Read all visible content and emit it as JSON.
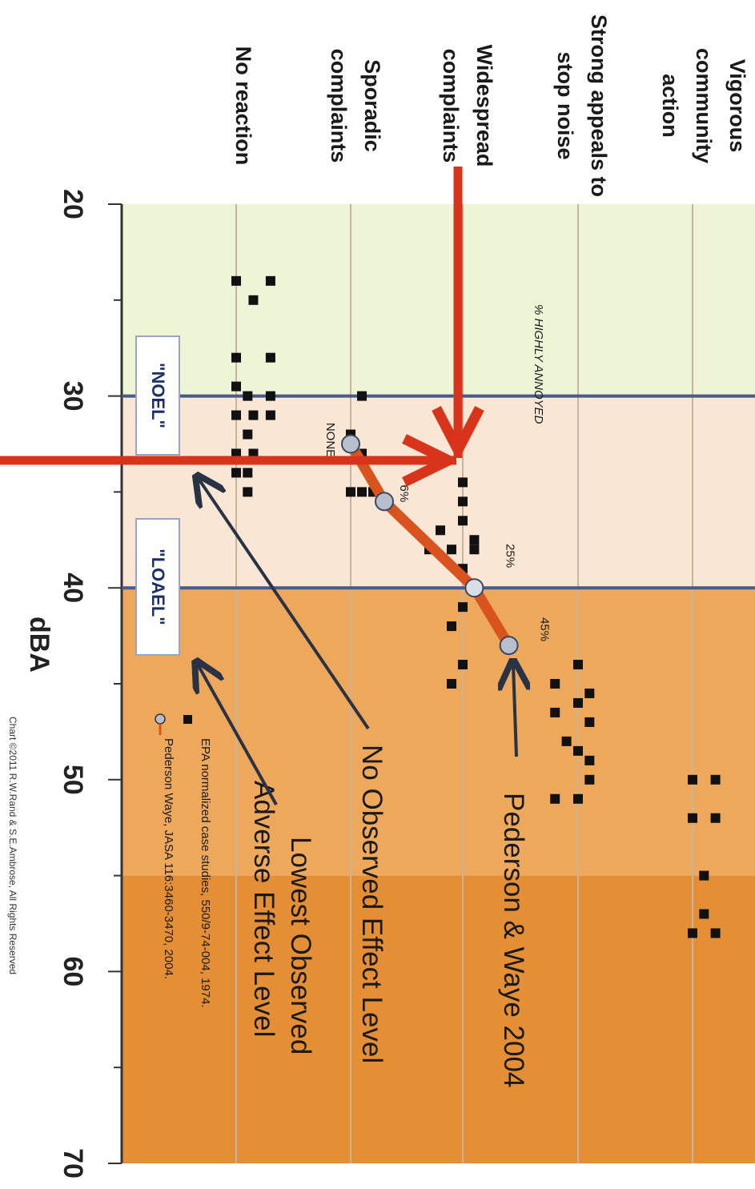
{
  "chart_data": {
    "type": "scatter",
    "orientation": "rotated 90 degrees clockwise",
    "xlabel": "dBA",
    "x_ticks": [
      "20",
      "30",
      "40",
      "50",
      "60",
      "70"
    ],
    "xlim": [
      20,
      70
    ],
    "categories": [
      "No reaction",
      "Sporadic complaints",
      "Widespread complaints",
      "Strong appeals to stop noise",
      "Vigorous community action"
    ],
    "series": [
      {
        "name": "EPA normalized case studies, 550/9-74-004, 1974.",
        "marker": "square",
        "color": "#111111",
        "points": [
          {
            "x": 24,
            "level": 0
          },
          {
            "x": 24,
            "level": 0.3
          },
          {
            "x": 25,
            "level": 0.15
          },
          {
            "x": 28,
            "level": 0
          },
          {
            "x": 28,
            "level": 0.3
          },
          {
            "x": 29.5,
            "level": 0
          },
          {
            "x": 30,
            "level": 0.1
          },
          {
            "x": 30,
            "level": 0.3
          },
          {
            "x": 31,
            "level": 0
          },
          {
            "x": 31,
            "level": 0.15
          },
          {
            "x": 31,
            "level": 0.3
          },
          {
            "x": 32,
            "level": 0.1
          },
          {
            "x": 33,
            "level": 0
          },
          {
            "x": 33,
            "level": 0.15
          },
          {
            "x": 34,
            "level": 0.1
          },
          {
            "x": 34,
            "level": 0
          },
          {
            "x": 35,
            "level": 0.1
          },
          {
            "x": 30,
            "level": 1.1
          },
          {
            "x": 32,
            "level": 1.0
          },
          {
            "x": 33,
            "level": 1.1
          },
          {
            "x": 35,
            "level": 1.0
          },
          {
            "x": 35,
            "level": 1.1
          },
          {
            "x": 35,
            "level": 1.2
          },
          {
            "x": 34.5,
            "level": 2.0
          },
          {
            "x": 35.5,
            "level": 2.0
          },
          {
            "x": 36.5,
            "level": 2.0
          },
          {
            "x": 37,
            "level": 1.8
          },
          {
            "x": 37.5,
            "level": 2.1
          },
          {
            "x": 38,
            "level": 1.9
          },
          {
            "x": 38,
            "level": 2.1
          },
          {
            "x": 38,
            "level": 1.7
          },
          {
            "x": 39,
            "level": 2.0
          },
          {
            "x": 41,
            "level": 2.0
          },
          {
            "x": 42,
            "level": 1.9
          },
          {
            "x": 44,
            "level": 2.0
          },
          {
            "x": 45,
            "level": 1.9
          },
          {
            "x": 44,
            "level": 3.0
          },
          {
            "x": 45,
            "level": 2.8
          },
          {
            "x": 45.5,
            "level": 3.1
          },
          {
            "x": 46,
            "level": 3.0
          },
          {
            "x": 46.5,
            "level": 2.8
          },
          {
            "x": 47,
            "level": 3.1
          },
          {
            "x": 48,
            "level": 2.9
          },
          {
            "x": 48.5,
            "level": 3.0
          },
          {
            "x": 49,
            "level": 3.1
          },
          {
            "x": 50,
            "level": 3.1
          },
          {
            "x": 51,
            "level": 2.8
          },
          {
            "x": 51,
            "level": 3.0
          },
          {
            "x": 50,
            "level": 4.0
          },
          {
            "x": 50,
            "level": 4.2
          },
          {
            "x": 52,
            "level": 4.0
          },
          {
            "x": 52,
            "level": 4.2
          },
          {
            "x": 55,
            "level": 4.1
          },
          {
            "x": 57,
            "level": 4.1
          },
          {
            "x": 58,
            "level": 4.0
          },
          {
            "x": 58,
            "level": 4.2
          }
        ]
      },
      {
        "name": "Pederson Waye, JASA 116:3460-3470, 2004.",
        "marker": "circle",
        "color": "#b8bfcc",
        "line_color": "#d9531e",
        "points": [
          {
            "x": 32.5,
            "level": 1.0,
            "label": "NONE"
          },
          {
            "x": 35.5,
            "level": 1.3,
            "label": "6%"
          },
          {
            "x": 40,
            "level": 2.1,
            "label": "25%"
          },
          {
            "x": 43,
            "level": 2.4,
            "label": "45%"
          }
        ]
      }
    ],
    "reference_lines": [
      {
        "x": 30,
        "label": "\"NOEL\""
      },
      {
        "x": 40,
        "label": "\"LOAEL\""
      }
    ],
    "bands": [
      {
        "from": 20,
        "to": 30,
        "color": "#eef5d6"
      },
      {
        "from": 30,
        "to": 40,
        "color": "#fae6d4"
      },
      {
        "from": 40,
        "to": 55,
        "color": "#eea85c"
      },
      {
        "from": 55,
        "to": 70,
        "color": "#e48e36"
      }
    ],
    "annotations": {
      "highly_annoyed": "% HIGHLY ANNOYED",
      "pederson": "Pederson & Waye 2004",
      "noel_text": "No Observed Effect Level",
      "loael_line1": "Lowest Observed",
      "loael_line2": "Adverse Effect Level",
      "legend_epa": "EPA normalized case studies, 550/9-74-004, 1974.",
      "legend_pw": "Pederson Waye, JASA 116:3460-3470, 2004.",
      "footer": "Chart ©2011 R.W.Rand & S.E.Ambrose, All Rights Reserved"
    }
  }
}
